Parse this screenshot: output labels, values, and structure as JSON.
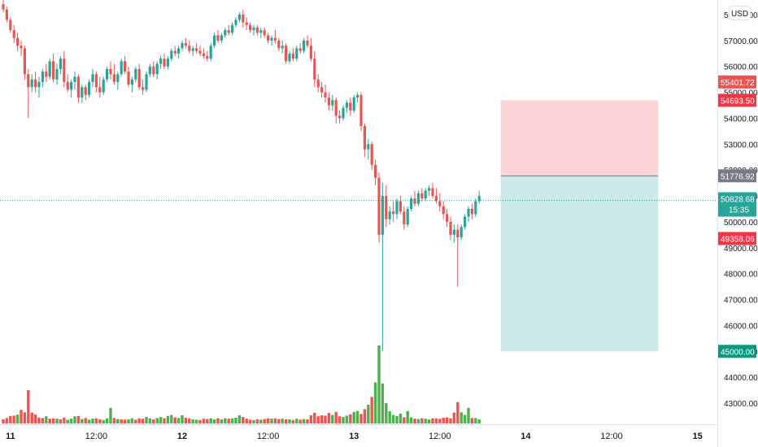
{
  "chart_data": {
    "type": "candlestick",
    "currency_button": "USD",
    "y_ticks": [
      "58000.00",
      "57000.00",
      "56000.00",
      "55000.00",
      "54000.00",
      "53000.00",
      "52000.00",
      "51000.00",
      "50000.00",
      "49000.00",
      "48000.00",
      "47000.00",
      "46000.00",
      "45000.00",
      "44000.00",
      "43000.00"
    ],
    "x_ticks": [
      {
        "label": "11",
        "bold": true,
        "candle": 2
      },
      {
        "label": "12:00",
        "bold": false,
        "candle": 26
      },
      {
        "label": "12",
        "bold": true,
        "candle": 50
      },
      {
        "label": "12:00",
        "bold": false,
        "candle": 74
      },
      {
        "label": "13",
        "bold": true,
        "candle": 98
      },
      {
        "label": "12:00",
        "bold": false,
        "candle": 122
      },
      {
        "label": "14",
        "bold": true,
        "candle": 146
      },
      {
        "label": "12:00",
        "bold": false,
        "candle": 170
      },
      {
        "label": "15",
        "bold": true,
        "candle": 194
      }
    ],
    "last_price": {
      "value": 50828.68,
      "label": "50828.68",
      "countdown": "15:35",
      "color": "#26a69a"
    },
    "price_tags": [
      {
        "label": "55401.72",
        "value": 55401.72,
        "color": "#ef5350"
      },
      {
        "label": "54693.50",
        "value": 54693.5,
        "color": "#f23645"
      },
      {
        "label": "51776.92",
        "value": 51776.92,
        "color": "#787b86"
      },
      {
        "label": "49358.06",
        "value": 49358.06,
        "color": "#f23645"
      },
      {
        "label": "45000.00",
        "value": 45000.0,
        "color": "#089981"
      }
    ],
    "position": {
      "type": "long",
      "entry": 51776.92,
      "stop": 45000.0,
      "target": 54693.5,
      "start_candle": 139,
      "end_candle": 183,
      "profit_color": "#fcd6d6",
      "loss_color": "#cce9e8"
    },
    "up_color": "#26a69a",
    "down_color": "#ef5350",
    "volume_up_color": "#4caf50",
    "volume_down_color": "#ef5350",
    "candles": [
      [
        58400,
        58600,
        58100,
        58200
      ],
      [
        58200,
        58300,
        57700,
        57800
      ],
      [
        57800,
        57900,
        57300,
        57400
      ],
      [
        57400,
        57600,
        56900,
        57100
      ],
      [
        57100,
        57300,
        56600,
        56800
      ],
      [
        56800,
        57000,
        56400,
        56700
      ],
      [
        56700,
        56800,
        55500,
        55700
      ],
      [
        55700,
        55900,
        54000,
        55200
      ],
      [
        55200,
        55700,
        55000,
        55500
      ],
      [
        55500,
        55800,
        55000,
        55200
      ],
      [
        55200,
        55600,
        54800,
        55400
      ],
      [
        55400,
        55900,
        55200,
        55800
      ],
      [
        55800,
        56100,
        55400,
        55600
      ],
      [
        55600,
        56300,
        55500,
        56200
      ],
      [
        56200,
        56500,
        55400,
        55500
      ],
      [
        55500,
        56100,
        55300,
        55900
      ],
      [
        55900,
        56400,
        55700,
        56300
      ],
      [
        56300,
        56600,
        55200,
        55400
      ],
      [
        55400,
        55700,
        55000,
        55100
      ],
      [
        55100,
        55500,
        54800,
        55400
      ],
      [
        55400,
        55800,
        55100,
        55600
      ],
      [
        55600,
        55700,
        54600,
        54800
      ],
      [
        54800,
        55300,
        54600,
        55200
      ],
      [
        55200,
        55300,
        54700,
        54900
      ],
      [
        54900,
        55500,
        54800,
        55400
      ],
      [
        55400,
        55900,
        55200,
        55700
      ],
      [
        55700,
        55800,
        55000,
        55200
      ],
      [
        55200,
        55600,
        54800,
        55000
      ],
      [
        55000,
        55600,
        54900,
        55500
      ],
      [
        55500,
        56000,
        55400,
        55900
      ],
      [
        55900,
        56200,
        55500,
        55700
      ],
      [
        55700,
        56100,
        55300,
        55400
      ],
      [
        55400,
        55800,
        55100,
        55700
      ],
      [
        55700,
        56300,
        55600,
        56200
      ],
      [
        56200,
        56400,
        55700,
        55800
      ],
      [
        55800,
        56000,
        55200,
        55300
      ],
      [
        55300,
        55600,
        55000,
        55500
      ],
      [
        55500,
        56000,
        55400,
        55900
      ],
      [
        55900,
        56100,
        55100,
        55200
      ],
      [
        55200,
        55500,
        54900,
        55100
      ],
      [
        55100,
        55800,
        55000,
        55700
      ],
      [
        55700,
        56100,
        55600,
        56000
      ],
      [
        56000,
        56200,
        55600,
        55700
      ],
      [
        55700,
        56200,
        55500,
        56100
      ],
      [
        56100,
        56400,
        55900,
        56300
      ],
      [
        56300,
        56500,
        55900,
        56000
      ],
      [
        56000,
        56400,
        55900,
        56300
      ],
      [
        56300,
        56700,
        56200,
        56600
      ],
      [
        56600,
        56800,
        56400,
        56500
      ],
      [
        56500,
        56800,
        56300,
        56700
      ],
      [
        56700,
        57000,
        56600,
        56900
      ],
      [
        56900,
        57100,
        56700,
        56800
      ],
      [
        56800,
        57000,
        56500,
        56600
      ],
      [
        56600,
        56800,
        56400,
        56700
      ],
      [
        56700,
        56900,
        56500,
        56600
      ],
      [
        56600,
        56800,
        56400,
        56500
      ],
      [
        56500,
        56700,
        56300,
        56400
      ],
      [
        56400,
        56600,
        56200,
        56300
      ],
      [
        56300,
        56900,
        56200,
        56800
      ],
      [
        56800,
        57300,
        56700,
        57200
      ],
      [
        57200,
        57400,
        56900,
        57000
      ],
      [
        57000,
        57300,
        56900,
        57200
      ],
      [
        57200,
        57500,
        57100,
        57400
      ],
      [
        57400,
        57600,
        57200,
        57300
      ],
      [
        57300,
        57700,
        57200,
        57600
      ],
      [
        57600,
        57900,
        57500,
        57800
      ],
      [
        57800,
        58100,
        57700,
        58000
      ],
      [
        58000,
        58200,
        57500,
        57700
      ],
      [
        57700,
        57900,
        57400,
        57600
      ],
      [
        57600,
        57700,
        57300,
        57400
      ],
      [
        57400,
        57600,
        57200,
        57500
      ],
      [
        57500,
        57600,
        57200,
        57300
      ],
      [
        57300,
        57500,
        57100,
        57400
      ],
      [
        57400,
        57500,
        57100,
        57200
      ],
      [
        57200,
        57300,
        56900,
        57000
      ],
      [
        57000,
        57200,
        56800,
        57100
      ],
      [
        57100,
        57400,
        56900,
        57000
      ],
      [
        57000,
        57100,
        56600,
        56700
      ],
      [
        56700,
        57000,
        56500,
        56800
      ],
      [
        56800,
        56900,
        56100,
        56200
      ],
      [
        56200,
        56600,
        56100,
        56500
      ],
      [
        56500,
        56700,
        56200,
        56300
      ],
      [
        56300,
        56800,
        56200,
        56700
      ],
      [
        56700,
        56900,
        56500,
        56600
      ],
      [
        56600,
        57100,
        56500,
        57000
      ],
      [
        57000,
        57200,
        56700,
        56800
      ],
      [
        56800,
        57100,
        56200,
        56300
      ],
      [
        56300,
        56600,
        55200,
        55500
      ],
      [
        55500,
        55700,
        55000,
        55200
      ],
      [
        55200,
        55400,
        54800,
        55000
      ],
      [
        55000,
        55300,
        54600,
        54800
      ],
      [
        54800,
        55000,
        54300,
        54500
      ],
      [
        54500,
        54900,
        54300,
        54700
      ],
      [
        54700,
        54800,
        53800,
        54100
      ],
      [
        54100,
        54300,
        53800,
        54000
      ],
      [
        54000,
        54500,
        53900,
        54400
      ],
      [
        54400,
        54700,
        54200,
        54600
      ],
      [
        54600,
        54800,
        54100,
        54300
      ],
      [
        54300,
        54900,
        54200,
        54800
      ],
      [
        54800,
        55000,
        54600,
        54900
      ],
      [
        54900,
        55000,
        53500,
        53700
      ],
      [
        53700,
        53800,
        52500,
        52800
      ],
      [
        52800,
        53200,
        52400,
        53000
      ],
      [
        53000,
        53100,
        52000,
        52200
      ],
      [
        52200,
        52400,
        51400,
        51700
      ],
      [
        51700,
        51900,
        49200,
        49500
      ],
      [
        49500,
        51500,
        45000,
        51000
      ],
      [
        51000,
        51400,
        49800,
        50100
      ],
      [
        50100,
        50600,
        49900,
        50400
      ],
      [
        50400,
        50800,
        50000,
        50300
      ],
      [
        50300,
        50900,
        50100,
        50800
      ],
      [
        50800,
        51000,
        50300,
        50400
      ],
      [
        50400,
        50600,
        49700,
        49900
      ],
      [
        49900,
        50600,
        49800,
        50500
      ],
      [
        50500,
        51000,
        50400,
        50900
      ],
      [
        50900,
        51200,
        50600,
        50700
      ],
      [
        50700,
        51200,
        50600,
        51100
      ],
      [
        51100,
        51300,
        50800,
        50900
      ],
      [
        50900,
        51300,
        50800,
        51200
      ],
      [
        51200,
        51400,
        51000,
        51300
      ],
      [
        51300,
        51500,
        50900,
        51000
      ],
      [
        51000,
        51300,
        50700,
        50800
      ],
      [
        50800,
        51100,
        50400,
        50600
      ],
      [
        50600,
        50800,
        50100,
        50300
      ],
      [
        50300,
        50500,
        49800,
        50000
      ],
      [
        50000,
        50200,
        49300,
        49500
      ],
      [
        49500,
        49900,
        49200,
        49700
      ],
      [
        49700,
        49900,
        47500,
        49400
      ],
      [
        49400,
        49900,
        49300,
        49800
      ],
      [
        49800,
        50300,
        49700,
        50200
      ],
      [
        50200,
        50600,
        50000,
        50500
      ],
      [
        50500,
        50700,
        50100,
        50300
      ],
      [
        50300,
        50900,
        50200,
        50800
      ],
      [
        50800,
        51200,
        50700,
        51000
      ]
    ],
    "volumes": [
      [
        120,
        "d"
      ],
      [
        160,
        "d"
      ],
      [
        220,
        "d"
      ],
      [
        230,
        "d"
      ],
      [
        260,
        "u"
      ],
      [
        400,
        "d"
      ],
      [
        330,
        "d"
      ],
      [
        980,
        "d"
      ],
      [
        320,
        "d"
      ],
      [
        260,
        "d"
      ],
      [
        170,
        "d"
      ],
      [
        160,
        "d"
      ],
      [
        210,
        "u"
      ],
      [
        140,
        "d"
      ],
      [
        150,
        "d"
      ],
      [
        140,
        "u"
      ],
      [
        120,
        "d"
      ],
      [
        170,
        "d"
      ],
      [
        110,
        "u"
      ],
      [
        140,
        "u"
      ],
      [
        210,
        "u"
      ],
      [
        220,
        "d"
      ],
      [
        130,
        "u"
      ],
      [
        160,
        "d"
      ],
      [
        110,
        "u"
      ],
      [
        140,
        "u"
      ],
      [
        150,
        "d"
      ],
      [
        120,
        "d"
      ],
      [
        100,
        "u"
      ],
      [
        150,
        "u"
      ],
      [
        460,
        "u"
      ],
      [
        160,
        "d"
      ],
      [
        130,
        "u"
      ],
      [
        120,
        "d"
      ],
      [
        110,
        "d"
      ],
      [
        120,
        "u"
      ],
      [
        150,
        "u"
      ],
      [
        110,
        "d"
      ],
      [
        150,
        "d"
      ],
      [
        140,
        "d"
      ],
      [
        190,
        "u"
      ],
      [
        150,
        "u"
      ],
      [
        120,
        "d"
      ],
      [
        160,
        "u"
      ],
      [
        190,
        "u"
      ],
      [
        150,
        "d"
      ],
      [
        220,
        "u"
      ],
      [
        250,
        "u"
      ],
      [
        180,
        "d"
      ],
      [
        160,
        "u"
      ],
      [
        240,
        "u"
      ],
      [
        170,
        "d"
      ],
      [
        150,
        "d"
      ],
      [
        120,
        "u"
      ],
      [
        110,
        "u"
      ],
      [
        100,
        "d"
      ],
      [
        140,
        "d"
      ],
      [
        130,
        "d"
      ],
      [
        150,
        "u"
      ],
      [
        120,
        "u"
      ],
      [
        150,
        "d"
      ],
      [
        120,
        "u"
      ],
      [
        150,
        "u"
      ],
      [
        140,
        "d"
      ],
      [
        150,
        "u"
      ],
      [
        170,
        "u"
      ],
      [
        240,
        "u"
      ],
      [
        190,
        "d"
      ],
      [
        140,
        "d"
      ],
      [
        110,
        "d"
      ],
      [
        100,
        "u"
      ],
      [
        120,
        "d"
      ],
      [
        110,
        "u"
      ],
      [
        130,
        "d"
      ],
      [
        150,
        "d"
      ],
      [
        140,
        "u"
      ],
      [
        150,
        "d"
      ],
      [
        130,
        "d"
      ],
      [
        140,
        "u"
      ],
      [
        120,
        "d"
      ],
      [
        120,
        "u"
      ],
      [
        100,
        "d"
      ],
      [
        140,
        "u"
      ],
      [
        110,
        "d"
      ],
      [
        130,
        "u"
      ],
      [
        120,
        "d"
      ],
      [
        240,
        "d"
      ],
      [
        310,
        "d"
      ],
      [
        210,
        "d"
      ],
      [
        240,
        "d"
      ],
      [
        230,
        "d"
      ],
      [
        310,
        "d"
      ],
      [
        250,
        "u"
      ],
      [
        340,
        "d"
      ],
      [
        210,
        "d"
      ],
      [
        190,
        "u"
      ],
      [
        230,
        "u"
      ],
      [
        270,
        "d"
      ],
      [
        340,
        "u"
      ],
      [
        370,
        "u"
      ],
      [
        280,
        "d"
      ],
      [
        420,
        "d"
      ],
      [
        550,
        "u"
      ],
      [
        780,
        "d"
      ],
      [
        1210,
        "u"
      ],
      [
        2300,
        "u"
      ],
      [
        1180,
        "u"
      ],
      [
        600,
        "u"
      ],
      [
        360,
        "u"
      ],
      [
        250,
        "u"
      ],
      [
        220,
        "u"
      ],
      [
        290,
        "u"
      ],
      [
        180,
        "d"
      ],
      [
        360,
        "u"
      ],
      [
        180,
        "u"
      ],
      [
        140,
        "d"
      ],
      [
        130,
        "u"
      ],
      [
        150,
        "d"
      ],
      [
        140,
        "u"
      ],
      [
        120,
        "u"
      ],
      [
        150,
        "d"
      ],
      [
        150,
        "d"
      ],
      [
        140,
        "d"
      ],
      [
        170,
        "d"
      ],
      [
        180,
        "d"
      ],
      [
        150,
        "d"
      ],
      [
        320,
        "d"
      ],
      [
        630,
        "d"
      ],
      [
        330,
        "u"
      ],
      [
        250,
        "u"
      ],
      [
        460,
        "u"
      ],
      [
        160,
        "d"
      ],
      [
        160,
        "u"
      ],
      [
        120,
        "u"
      ]
    ]
  }
}
